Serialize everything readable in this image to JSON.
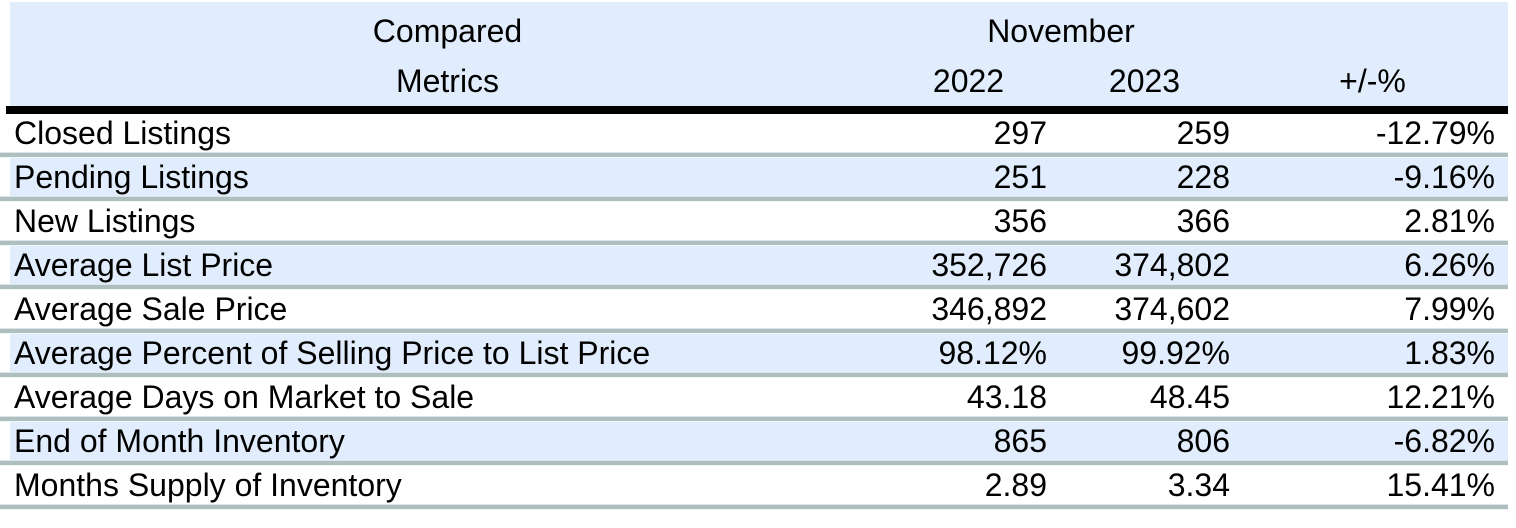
{
  "chart_data": {
    "type": "table",
    "column_groups": [
      {
        "label": "Compared",
        "columns": [
          "Metrics"
        ]
      },
      {
        "label": "November",
        "columns": [
          "2022",
          "2023"
        ]
      }
    ],
    "columns": [
      "Metrics",
      "2022",
      "2023",
      "+/-%"
    ],
    "rows": [
      {
        "metric": "Closed Listings",
        "y2022": "297",
        "y2023": "259",
        "change": "-12.79%"
      },
      {
        "metric": "Pending Listings",
        "y2022": "251",
        "y2023": "228",
        "change": "-9.16%"
      },
      {
        "metric": "New Listings",
        "y2022": "356",
        "y2023": "366",
        "change": "2.81%"
      },
      {
        "metric": "Average List Price",
        "y2022": "352,726",
        "y2023": "374,802",
        "change": "6.26%"
      },
      {
        "metric": "Average Sale Price",
        "y2022": "346,892",
        "y2023": "374,602",
        "change": "7.99%"
      },
      {
        "metric": "Average Percent of Selling Price to List Price",
        "y2022": "98.12%",
        "y2023": "99.92%",
        "change": "1.83%"
      },
      {
        "metric": "Average Days on Market to Sale",
        "y2022": "43.18",
        "y2023": "48.45",
        "change": "12.21%"
      },
      {
        "metric": "End of Month Inventory",
        "y2022": "865",
        "y2023": "806",
        "change": "-6.82%"
      },
      {
        "metric": "Months Supply of Inventory",
        "y2022": "2.89",
        "y2023": "3.34",
        "change": "15.41%"
      }
    ],
    "layout": {
      "alignment": {
        "Metrics": "left",
        "2022": "right",
        "2023": "right",
        "+/-%": "right"
      },
      "striping": "alternating rows; rows 2,4,6,8 shaded light blue",
      "grid": "thick black rule under header, gray rules between rows"
    },
    "colors": {
      "header_bg": "#e1edfc",
      "stripe_bg": "#e1edfc",
      "row_bg": "#ffffff",
      "row_separator": "#aebfbf",
      "header_divider": "#000000",
      "text": "#000000"
    }
  }
}
